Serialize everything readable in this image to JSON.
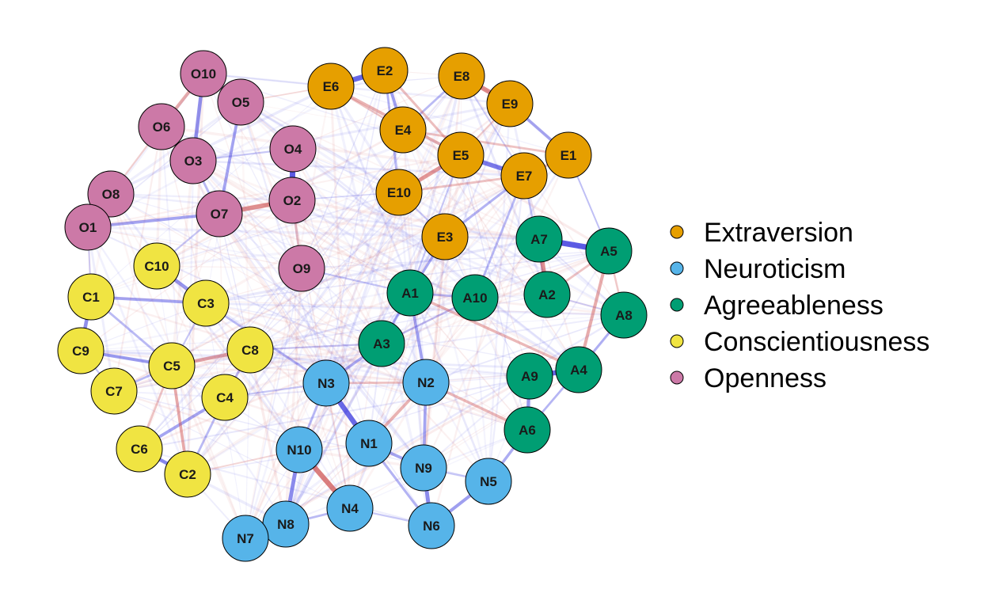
{
  "colors": {
    "Extraversion": "#E69F00",
    "Neuroticism": "#56B4E9",
    "Agreeableness": "#009E73",
    "Conscientiousness": "#F0E442",
    "Openness": "#CC79A7",
    "positive_edge": "#3F3FE0",
    "negative_edge": "#D05A5A"
  },
  "legend": [
    {
      "label": "Extraversion",
      "group": "Extraversion"
    },
    {
      "label": "Neuroticism",
      "group": "Neuroticism"
    },
    {
      "label": "Agreeableness",
      "group": "Agreeableness"
    },
    {
      "label": "Conscientiousness",
      "group": "Conscientiousness"
    },
    {
      "label": "Openness",
      "group": "Openness"
    }
  ],
  "nodes": [
    {
      "id": "O10",
      "group": "Openness"
    },
    {
      "id": "O5",
      "group": "Openness"
    },
    {
      "id": "O6",
      "group": "Openness"
    },
    {
      "id": "O3",
      "group": "Openness"
    },
    {
      "id": "O4",
      "group": "Openness"
    },
    {
      "id": "O8",
      "group": "Openness"
    },
    {
      "id": "O7",
      "group": "Openness"
    },
    {
      "id": "O2",
      "group": "Openness"
    },
    {
      "id": "O1",
      "group": "Openness"
    },
    {
      "id": "O9",
      "group": "Openness"
    },
    {
      "id": "E6",
      "group": "Extraversion"
    },
    {
      "id": "E2",
      "group": "Extraversion"
    },
    {
      "id": "E8",
      "group": "Extraversion"
    },
    {
      "id": "E9",
      "group": "Extraversion"
    },
    {
      "id": "E4",
      "group": "Extraversion"
    },
    {
      "id": "E5",
      "group": "Extraversion"
    },
    {
      "id": "E1",
      "group": "Extraversion"
    },
    {
      "id": "E7",
      "group": "Extraversion"
    },
    {
      "id": "E10",
      "group": "Extraversion"
    },
    {
      "id": "E3",
      "group": "Extraversion"
    },
    {
      "id": "A7",
      "group": "Agreeableness"
    },
    {
      "id": "A5",
      "group": "Agreeableness"
    },
    {
      "id": "A1",
      "group": "Agreeableness"
    },
    {
      "id": "A10",
      "group": "Agreeableness"
    },
    {
      "id": "A2",
      "group": "Agreeableness"
    },
    {
      "id": "A8",
      "group": "Agreeableness"
    },
    {
      "id": "A3",
      "group": "Agreeableness"
    },
    {
      "id": "A4",
      "group": "Agreeableness"
    },
    {
      "id": "A9",
      "group": "Agreeableness"
    },
    {
      "id": "A6",
      "group": "Agreeableness"
    },
    {
      "id": "C10",
      "group": "Conscientiousness"
    },
    {
      "id": "C1",
      "group": "Conscientiousness"
    },
    {
      "id": "C3",
      "group": "Conscientiousness"
    },
    {
      "id": "C8",
      "group": "Conscientiousness"
    },
    {
      "id": "C9",
      "group": "Conscientiousness"
    },
    {
      "id": "C5",
      "group": "Conscientiousness"
    },
    {
      "id": "C7",
      "group": "Conscientiousness"
    },
    {
      "id": "C4",
      "group": "Conscientiousness"
    },
    {
      "id": "C6",
      "group": "Conscientiousness"
    },
    {
      "id": "C2",
      "group": "Conscientiousness"
    },
    {
      "id": "N3",
      "group": "Neuroticism"
    },
    {
      "id": "N2",
      "group": "Neuroticism"
    },
    {
      "id": "N1",
      "group": "Neuroticism"
    },
    {
      "id": "N10",
      "group": "Neuroticism"
    },
    {
      "id": "N9",
      "group": "Neuroticism"
    },
    {
      "id": "N5",
      "group": "Neuroticism"
    },
    {
      "id": "N4",
      "group": "Neuroticism"
    },
    {
      "id": "N8",
      "group": "Neuroticism"
    },
    {
      "id": "N6",
      "group": "Neuroticism"
    },
    {
      "id": "N7",
      "group": "Neuroticism"
    }
  ],
  "edges": [
    {
      "a": "O4",
      "b": "O2",
      "sign": "pos",
      "w": 1.0
    },
    {
      "a": "O7",
      "b": "O2",
      "sign": "neg",
      "w": 0.75
    },
    {
      "a": "O10",
      "b": "O3",
      "sign": "pos",
      "w": 0.6
    },
    {
      "a": "O10",
      "b": "O6",
      "sign": "neg",
      "w": 0.5
    },
    {
      "a": "O5",
      "b": "O7",
      "sign": "pos",
      "w": 0.45
    },
    {
      "a": "O1",
      "b": "O7",
      "sign": "pos",
      "w": 0.45
    },
    {
      "a": "O3",
      "b": "O7",
      "sign": "pos",
      "w": 0.3
    },
    {
      "a": "O6",
      "b": "O3",
      "sign": "pos",
      "w": 0.25
    },
    {
      "a": "O8",
      "b": "O1",
      "sign": "pos",
      "w": 0.3
    },
    {
      "a": "O2",
      "b": "O9",
      "sign": "neg",
      "w": 0.3
    },
    {
      "a": "O4",
      "b": "O3",
      "sign": "pos",
      "w": 0.2
    },
    {
      "a": "E6",
      "b": "E2",
      "sign": "pos",
      "w": 0.9
    },
    {
      "a": "E8",
      "b": "E9",
      "sign": "neg",
      "w": 0.8
    },
    {
      "a": "E5",
      "b": "E7",
      "sign": "pos",
      "w": 0.75
    },
    {
      "a": "E10",
      "b": "E5",
      "sign": "neg",
      "w": 0.65
    },
    {
      "a": "E2",
      "b": "E4",
      "sign": "pos",
      "w": 0.45
    },
    {
      "a": "E6",
      "b": "E5",
      "sign": "neg",
      "w": 0.45
    },
    {
      "a": "E9",
      "b": "E1",
      "sign": "pos",
      "w": 0.45
    },
    {
      "a": "E7",
      "b": "E1",
      "sign": "neg",
      "w": 0.35
    },
    {
      "a": "E2",
      "b": "E5",
      "sign": "neg",
      "w": 0.35
    },
    {
      "a": "E10",
      "b": "E7",
      "sign": "neg",
      "w": 0.3
    },
    {
      "a": "E4",
      "b": "E1",
      "sign": "neg",
      "w": 0.3
    },
    {
      "a": "E2",
      "b": "E10",
      "sign": "pos",
      "w": 0.3
    },
    {
      "a": "E8",
      "b": "E4",
      "sign": "pos",
      "w": 0.3
    },
    {
      "a": "E3",
      "b": "E7",
      "sign": "pos",
      "w": 0.35
    },
    {
      "a": "A7",
      "b": "A5",
      "sign": "pos",
      "w": 1.0
    },
    {
      "a": "A7",
      "b": "A2",
      "sign": "neg",
      "w": 0.75
    },
    {
      "a": "A5",
      "b": "A4",
      "sign": "neg",
      "w": 0.5
    },
    {
      "a": "A4",
      "b": "A9",
      "sign": "pos",
      "w": 0.9
    },
    {
      "a": "A9",
      "b": "A6",
      "sign": "pos",
      "w": 0.55
    },
    {
      "a": "A1",
      "b": "A4",
      "sign": "neg",
      "w": 0.4
    },
    {
      "a": "A8",
      "b": "A4",
      "sign": "pos",
      "w": 0.35
    },
    {
      "a": "A10",
      "b": "E7",
      "sign": "pos",
      "w": 0.3
    },
    {
      "a": "A1",
      "b": "A10",
      "sign": "pos",
      "w": 0.3
    },
    {
      "a": "A5",
      "b": "A2",
      "sign": "neg",
      "w": 0.3
    },
    {
      "a": "A3",
      "b": "A1",
      "sign": "pos",
      "w": 0.3
    },
    {
      "a": "A3",
      "b": "N3",
      "sign": "pos",
      "w": 0.4
    },
    {
      "a": "C1",
      "b": "C9",
      "sign": "pos",
      "w": 0.6
    },
    {
      "a": "C10",
      "b": "C3",
      "sign": "pos",
      "w": 0.55
    },
    {
      "a": "C1",
      "b": "C3",
      "sign": "pos",
      "w": 0.45
    },
    {
      "a": "C9",
      "b": "C5",
      "sign": "pos",
      "w": 0.5
    },
    {
      "a": "C5",
      "b": "C8",
      "sign": "neg",
      "w": 0.55
    },
    {
      "a": "C6",
      "b": "C2",
      "sign": "pos",
      "w": 0.6
    },
    {
      "a": "C6",
      "b": "C4",
      "sign": "pos",
      "w": 0.45
    },
    {
      "a": "C5",
      "b": "C2",
      "sign": "neg",
      "w": 0.45
    },
    {
      "a": "C5",
      "b": "C7",
      "sign": "pos",
      "w": 0.3
    },
    {
      "a": "C4",
      "b": "C2",
      "sign": "pos",
      "w": 0.3
    },
    {
      "a": "C5",
      "b": "C6",
      "sign": "neg",
      "w": 0.3
    },
    {
      "a": "C1",
      "b": "C5",
      "sign": "pos",
      "w": 0.3
    },
    {
      "a": "C3",
      "b": "N3",
      "sign": "pos",
      "w": 0.3
    },
    {
      "a": "C8",
      "b": "C4",
      "sign": "pos",
      "w": 0.3
    },
    {
      "a": "N3",
      "b": "N1",
      "sign": "pos",
      "w": 0.9
    },
    {
      "a": "N10",
      "b": "N4",
      "sign": "neg",
      "w": 0.9
    },
    {
      "a": "N10",
      "b": "N8",
      "sign": "pos",
      "w": 0.65
    },
    {
      "a": "N9",
      "b": "N6",
      "sign": "pos",
      "w": 0.65
    },
    {
      "a": "N5",
      "b": "N6",
      "sign": "pos",
      "w": 0.5
    },
    {
      "a": "N1",
      "b": "N9",
      "sign": "pos",
      "w": 0.45
    },
    {
      "a": "N2",
      "b": "N1",
      "sign": "neg",
      "w": 0.45
    },
    {
      "a": "N3",
      "b": "N2",
      "sign": "neg",
      "w": 0.3
    },
    {
      "a": "N8",
      "b": "N4",
      "sign": "pos",
      "w": 0.3
    },
    {
      "a": "N3",
      "b": "N10",
      "sign": "pos",
      "w": 0.3
    },
    {
      "a": "N2",
      "b": "A1",
      "sign": "pos",
      "w": 0.45
    },
    {
      "a": "N2",
      "b": "N9",
      "sign": "pos",
      "w": 0.45
    },
    {
      "a": "N1",
      "b": "N6",
      "sign": "pos",
      "w": 0.35
    },
    {
      "a": "A6",
      "b": "N5",
      "sign": "pos",
      "w": 0.4
    },
    {
      "a": "N2",
      "b": "A6",
      "sign": "neg",
      "w": 0.4
    },
    {
      "a": "E3",
      "b": "A1",
      "sign": "pos",
      "w": 0.35
    },
    {
      "a": "A3",
      "b": "A10",
      "sign": "pos",
      "w": 0.25
    },
    {
      "a": "E10",
      "b": "E3",
      "sign": "pos",
      "w": 0.2
    },
    {
      "a": "O7",
      "b": "C10",
      "sign": "pos",
      "w": 0.2
    },
    {
      "a": "O1",
      "b": "C1",
      "sign": "pos",
      "w": 0.15
    },
    {
      "a": "C8",
      "b": "A3",
      "sign": "pos",
      "w": 0.2
    },
    {
      "a": "O9",
      "b": "A1",
      "sign": "pos",
      "w": 0.2
    },
    {
      "a": "E5",
      "b": "A1",
      "sign": "pos",
      "w": 0.2
    },
    {
      "a": "E7",
      "b": "A2",
      "sign": "pos",
      "w": 0.25
    },
    {
      "a": "C4",
      "b": "N3",
      "sign": "pos",
      "w": 0.2
    },
    {
      "a": "C2",
      "b": "N10",
      "sign": "neg",
      "w": 0.15
    },
    {
      "a": "E9",
      "b": "E5",
      "sign": "neg",
      "w": 0.2
    },
    {
      "a": "O6",
      "b": "O8",
      "sign": "neg",
      "w": 0.2
    },
    {
      "a": "A6",
      "b": "A4",
      "sign": "pos",
      "w": 0.3
    },
    {
      "a": "A8",
      "b": "A5",
      "sign": "neg",
      "w": 0.25
    },
    {
      "a": "N7",
      "b": "N8",
      "sign": "pos",
      "w": 0.3
    },
    {
      "a": "N4",
      "b": "N6",
      "sign": "pos",
      "w": 0.2
    },
    {
      "a": "E6",
      "b": "E4",
      "sign": "neg",
      "w": 0.2
    },
    {
      "a": "O5",
      "b": "E6",
      "sign": "neg",
      "w": 0.12
    },
    {
      "a": "O10",
      "b": "O5",
      "sign": "pos",
      "w": 0.2
    },
    {
      "a": "C9",
      "b": "C7",
      "sign": "pos",
      "w": 0.2
    },
    {
      "a": "E1",
      "b": "A5",
      "sign": "pos",
      "w": 0.15
    },
    {
      "a": "E8",
      "b": "E7",
      "sign": "pos",
      "w": 0.15
    },
    {
      "a": "A2",
      "b": "A8",
      "sign": "pos",
      "w": 0.15
    },
    {
      "a": "C3",
      "b": "C5",
      "sign": "pos",
      "w": 0.2
    },
    {
      "a": "O2",
      "b": "E10",
      "sign": "pos",
      "w": 0.1
    },
    {
      "a": "N9",
      "b": "N5",
      "sign": "pos",
      "w": 0.2
    }
  ]
}
